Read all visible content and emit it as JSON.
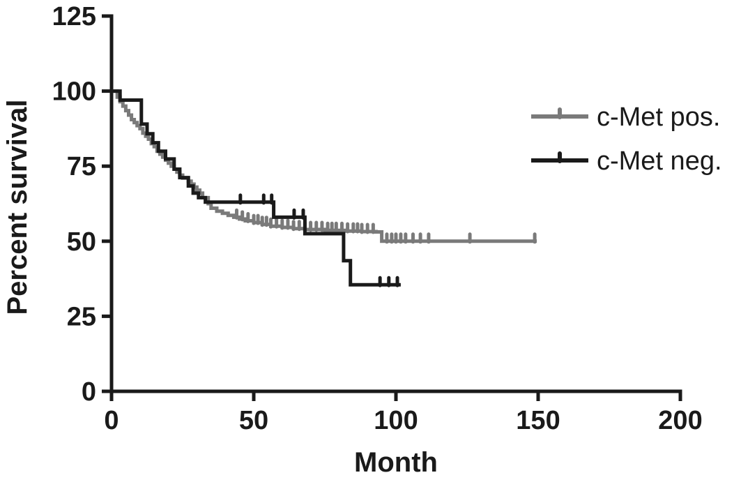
{
  "chart_data": {
    "type": "line",
    "subtype": "kaplan-meier-step-survival",
    "title": "",
    "xlabel": "Month",
    "ylabel": "Percent survival",
    "xlim": [
      0,
      200
    ],
    "ylim": [
      0,
      125
    ],
    "xticks": [
      0,
      50,
      100,
      150,
      200
    ],
    "yticks": [
      0,
      25,
      50,
      75,
      100,
      125
    ],
    "grid": false,
    "legend_position": "upper-right",
    "background_color": "#ffffff",
    "axis_color": "#1a1a1a",
    "censor_marker": "tick-up",
    "series": [
      {
        "name": "c-Met pos.",
        "color": "#7a7a7a",
        "end_month": 149.5,
        "points": [
          [
            0,
            100
          ],
          [
            2,
            98
          ],
          [
            3,
            96.5
          ],
          [
            4,
            95
          ],
          [
            5,
            93.5
          ],
          [
            6,
            92
          ],
          [
            7,
            90.5
          ],
          [
            8,
            89.5
          ],
          [
            9,
            88.5
          ],
          [
            10,
            87.5
          ],
          [
            11,
            86
          ],
          [
            12,
            85
          ],
          [
            13,
            84
          ],
          [
            14,
            82.5
          ],
          [
            15,
            81.5
          ],
          [
            16,
            80
          ],
          [
            17,
            79
          ],
          [
            18,
            78
          ],
          [
            19,
            77
          ],
          [
            20,
            76
          ],
          [
            21,
            75
          ],
          [
            22,
            74
          ],
          [
            23,
            73
          ],
          [
            24,
            72
          ],
          [
            25,
            71
          ],
          [
            27,
            70
          ],
          [
            28,
            69
          ],
          [
            29,
            68
          ],
          [
            30,
            67
          ],
          [
            31,
            66
          ],
          [
            32,
            64.5
          ],
          [
            34,
            62.5
          ],
          [
            35,
            61
          ],
          [
            37,
            60
          ],
          [
            39,
            59.3
          ],
          [
            41,
            58.6
          ],
          [
            43,
            58
          ],
          [
            45,
            57.4
          ],
          [
            47,
            56.8
          ],
          [
            50,
            56.2
          ],
          [
            53,
            55.6
          ],
          [
            56,
            55
          ],
          [
            60,
            54.6
          ],
          [
            64,
            54.2
          ],
          [
            68,
            53.9
          ],
          [
            75,
            53.6
          ],
          [
            82,
            53.4
          ],
          [
            88,
            53.2
          ],
          [
            93,
            53.1
          ],
          [
            95,
            50
          ]
        ],
        "censor_months": [
          44,
          46,
          48,
          50,
          51.5,
          53,
          54.5,
          56,
          58,
          60,
          62,
          64,
          66,
          68,
          70,
          72,
          74,
          76,
          77.5,
          79,
          81,
          83,
          85,
          86.5,
          88,
          90,
          92,
          96.8,
          98.5,
          100,
          101.7,
          103.4,
          106,
          108.6,
          111.5,
          126,
          148.8
        ]
      },
      {
        "name": "c-Met neg.",
        "color": "#1a1a1a",
        "end_month": 101.7,
        "points": [
          [
            0,
            100
          ],
          [
            3,
            97
          ],
          [
            10.5,
            89
          ],
          [
            12.5,
            85.8
          ],
          [
            14.5,
            82.8
          ],
          [
            16.5,
            80
          ],
          [
            19,
            77.4
          ],
          [
            22,
            74
          ],
          [
            24,
            71.2
          ],
          [
            27,
            68.4
          ],
          [
            28.7,
            66
          ],
          [
            30.6,
            64.5
          ],
          [
            33,
            63
          ],
          [
            57,
            58
          ],
          [
            68,
            52.5
          ],
          [
            81.6,
            43.5
          ],
          [
            84,
            35.5
          ]
        ],
        "censor_months": [
          45.3,
          53.5,
          56.3,
          64.2,
          67.4,
          94.4,
          97.5,
          100.5
        ]
      }
    ]
  }
}
